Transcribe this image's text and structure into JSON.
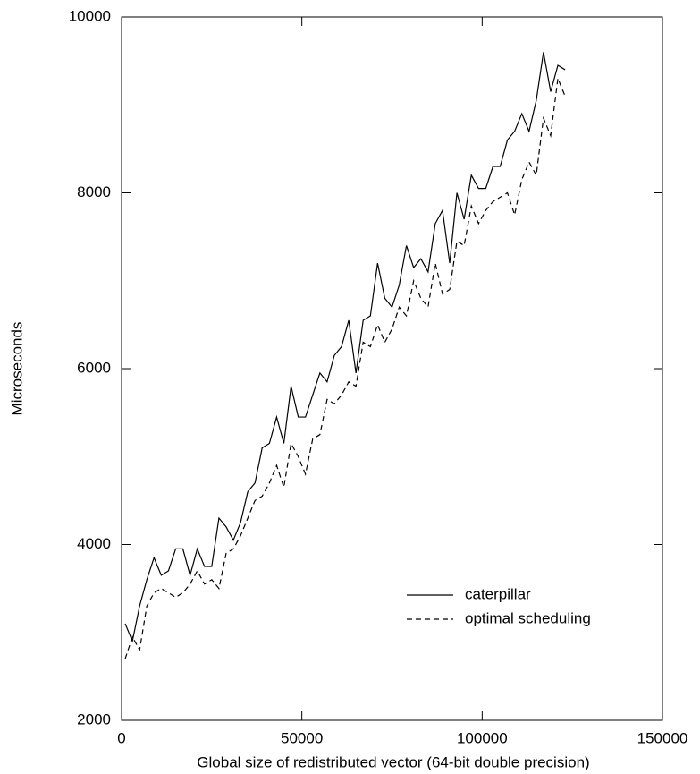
{
  "chart_data": {
    "type": "line",
    "x_label": "Global size of redistributed vector (64-bit double precision)",
    "y_label": "Microseconds",
    "xlim": [
      0,
      150000
    ],
    "xticks": [
      0,
      50000,
      100000,
      150000
    ],
    "ylim": [
      2000,
      10000
    ],
    "yticks": [
      2000,
      4000,
      6000,
      8000,
      10000
    ],
    "grid": false,
    "legend": "lower right",
    "x": [
      1000,
      3000,
      5000,
      7000,
      9000,
      11000,
      13000,
      15000,
      17000,
      19000,
      21000,
      23000,
      25000,
      27000,
      29000,
      31000,
      33000,
      35000,
      37000,
      39000,
      41000,
      43000,
      45000,
      47000,
      49000,
      51000,
      53000,
      55000,
      57000,
      59000,
      61000,
      63000,
      65000,
      67000,
      69000,
      71000,
      73000,
      75000,
      77000,
      79000,
      81000,
      83000,
      85000,
      87000,
      89000,
      91000,
      93000,
      95000,
      97000,
      99000,
      101000,
      103000,
      105000,
      107000,
      109000,
      111000,
      113000,
      115000,
      117000,
      119000,
      121000,
      123000
    ],
    "series": [
      {
        "name": "caterpillar",
        "color": "#000000",
        "dash": "solid",
        "values": [
          3100,
          2900,
          3300,
          3600,
          3850,
          3650,
          3700,
          3950,
          3950,
          3650,
          3950,
          3750,
          3750,
          4300,
          4200,
          4050,
          4250,
          4600,
          4700,
          5100,
          5150,
          5450,
          5150,
          5800,
          5450,
          5450,
          5700,
          5950,
          5850,
          6150,
          6250,
          6550,
          5950,
          6550,
          6600,
          7200,
          6800,
          6700,
          6950,
          7400,
          7150,
          7250,
          7100,
          7650,
          7800,
          7200,
          8000,
          7700,
          8200,
          8050,
          8050,
          8300,
          8300,
          8600,
          8700,
          8900,
          8700,
          9050,
          9600,
          9150,
          9450,
          9400
        ]
      },
      {
        "name": "optimal scheduling",
        "color": "#000000",
        "dash": "dashed",
        "values": [
          2700,
          2950,
          2800,
          3300,
          3450,
          3500,
          3450,
          3400,
          3450,
          3550,
          3700,
          3550,
          3600,
          3500,
          3900,
          3950,
          4100,
          4300,
          4500,
          4550,
          4700,
          4900,
          4650,
          5150,
          5000,
          4800,
          5200,
          5250,
          5650,
          5600,
          5700,
          5850,
          5800,
          6300,
          6250,
          6500,
          6300,
          6450,
          6700,
          6600,
          7000,
          6800,
          6700,
          7200,
          6850,
          6900,
          7450,
          7400,
          7850,
          7650,
          7800,
          7900,
          7950,
          8000,
          7750,
          8150,
          8350,
          8200,
          8850,
          8650,
          9300,
          9100
        ]
      }
    ]
  }
}
